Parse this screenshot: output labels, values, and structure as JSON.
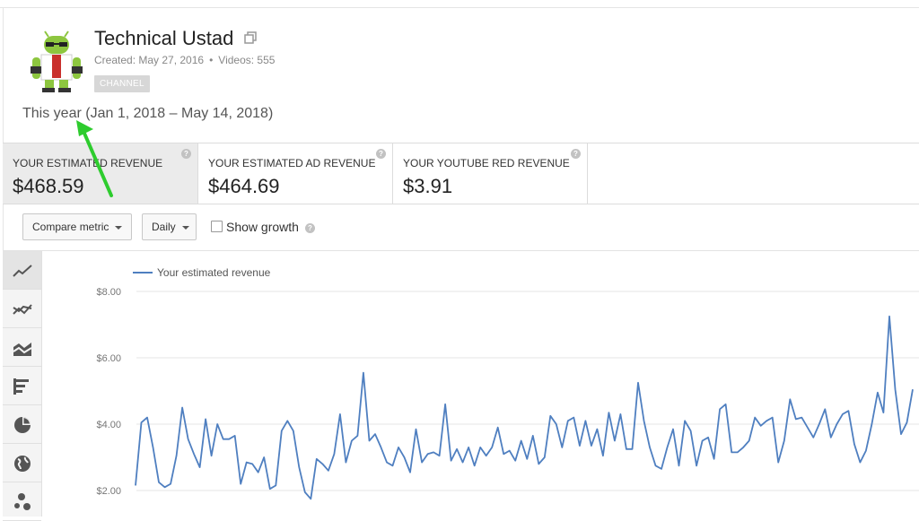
{
  "channel": {
    "name": "Technical Ustad",
    "created": "Created: May 27, 2016",
    "separator": "•",
    "videos": "Videos: 555",
    "badge": "CHANNEL"
  },
  "date_range": "This year (Jan 1, 2018 – May 14, 2018)",
  "metrics": [
    {
      "label": "YOUR ESTIMATED REVENUE",
      "value": "$468.59"
    },
    {
      "label": "YOUR ESTIMATED AD REVENUE",
      "value": "$464.69"
    },
    {
      "label": "YOUR YOUTUBE RED REVENUE",
      "value": "$3.91"
    }
  ],
  "help_glyph": "?",
  "controls": {
    "compare_metric": "Compare metric",
    "interval": "Daily",
    "show_growth": "Show growth"
  },
  "toolbar_icons": [
    "line-chart-icon",
    "multi-line-icon",
    "stacked-area-icon",
    "bar-chart-icon",
    "pie-chart-icon",
    "globe-icon",
    "bubble-chart-icon"
  ],
  "colors": {
    "series": "#4f7fc0",
    "annotation_arrow": "#2ecc2e"
  },
  "chart_data": {
    "type": "line",
    "series": [
      {
        "name": "Your estimated revenue",
        "values": [
          2.15,
          4.05,
          4.2,
          3.3,
          2.25,
          2.1,
          2.2,
          3.05,
          4.5,
          3.55,
          3.1,
          2.7,
          4.15,
          3.05,
          4.0,
          3.55,
          3.55,
          3.65,
          2.2,
          2.85,
          2.8,
          2.55,
          3.0,
          2.05,
          2.15,
          3.8,
          4.1,
          3.8,
          2.7,
          1.95,
          1.75,
          2.95,
          2.8,
          2.6,
          3.1,
          4.3,
          2.85,
          3.5,
          3.65,
          5.55,
          3.5,
          3.7,
          3.3,
          2.85,
          2.75,
          3.3,
          3.0,
          2.55,
          3.85,
          2.85,
          3.1,
          3.15,
          3.05,
          4.6,
          2.9,
          3.25,
          2.85,
          3.3,
          2.75,
          3.3,
          3.05,
          3.3,
          3.9,
          3.1,
          3.2,
          2.9,
          3.5,
          2.95,
          3.65,
          2.8,
          3.0,
          4.25,
          4.0,
          3.3,
          4.1,
          4.2,
          3.35,
          4.1,
          3.35,
          3.85,
          3.05,
          4.35,
          3.5,
          4.3,
          3.25,
          3.25,
          5.25,
          4.1,
          3.3,
          2.75,
          2.65,
          3.3,
          3.85,
          2.75,
          4.1,
          3.8,
          2.75,
          3.5,
          3.6,
          2.95,
          4.45,
          4.6,
          3.15,
          3.15,
          3.3,
          3.5,
          4.2,
          3.95,
          4.1,
          4.2,
          2.85,
          3.5,
          4.75,
          4.15,
          4.2,
          3.9,
          3.6,
          4.0,
          4.45,
          3.6,
          4.0,
          4.3,
          4.4,
          3.4,
          2.85,
          3.2,
          4.0,
          4.95,
          4.35,
          7.25,
          5.05,
          3.7,
          4.05,
          5.05
        ]
      }
    ],
    "y_ticks": [
      "$8.00",
      "$6.00",
      "$4.00",
      "$2.00"
    ],
    "y_tick_values": [
      8,
      6,
      4,
      2
    ],
    "ylim": [
      1.0,
      8.5
    ],
    "legend": "top-left",
    "grid": true
  }
}
